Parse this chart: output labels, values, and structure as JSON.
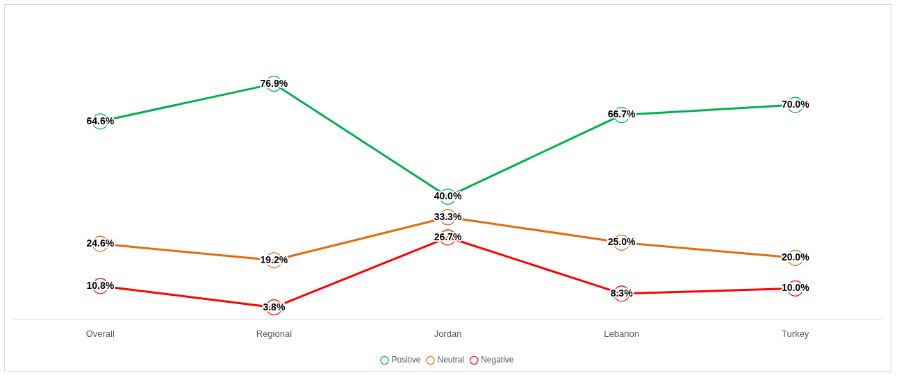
{
  "chart_data": {
    "type": "line",
    "categories": [
      "Overall",
      "Regional",
      "Jordan",
      "Lebanon",
      "Turkey"
    ],
    "series": [
      {
        "name": "Positive",
        "color": "#00b050",
        "values": [
          64.6,
          76.9,
          40.0,
          66.7,
          70.0
        ],
        "value_labels": [
          "64.6%",
          "76.9%",
          "40.0%",
          "66.7%",
          "70.0%"
        ]
      },
      {
        "name": "Neutral",
        "color": "#e46c0a",
        "values": [
          24.6,
          19.2,
          33.3,
          25.0,
          20.0
        ],
        "value_labels": [
          "24.6%",
          "19.2%",
          "33.3%",
          "25.0%",
          "20.0%"
        ]
      },
      {
        "name": "Negative",
        "color": "#ff0000",
        "values": [
          10.8,
          3.8,
          26.7,
          8.3,
          10.0
        ],
        "value_labels": [
          "10.8%",
          "3.8%",
          "26.7%",
          "8.3%",
          "10.0%"
        ]
      }
    ],
    "legend": "bottom",
    "grid": false,
    "marker": "circle",
    "line_style": "solid"
  }
}
